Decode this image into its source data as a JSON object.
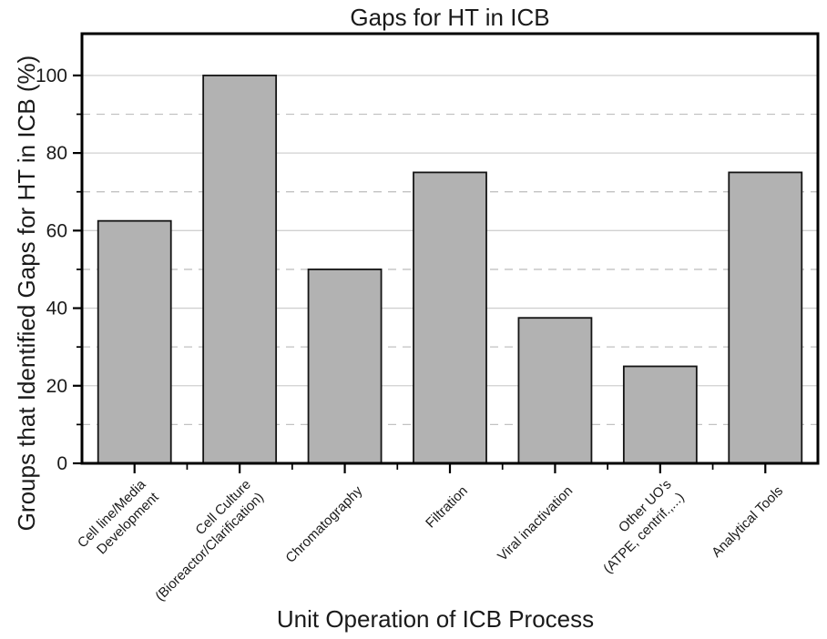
{
  "figure": {
    "background": "#ffffff"
  },
  "chart_data": {
    "type": "bar",
    "title": "Gaps for HT in ICB",
    "xlabel": "Unit Operation of ICB Process",
    "ylabel": "Groups that Identified Gaps for HT in ICB (%)",
    "categories": [
      {
        "label": "Cell line/Media Development",
        "lines": [
          "Cell line/Media",
          "Development"
        ]
      },
      {
        "label": "Cell Culture (Bioreactor/Clarification)",
        "lines": [
          "Cell Culture",
          "(Bioreactor/Clarification)"
        ]
      },
      {
        "label": "Chromatography",
        "lines": [
          "Chromatography"
        ]
      },
      {
        "label": "Filtration",
        "lines": [
          "Filtration"
        ]
      },
      {
        "label": "Viral inactivation",
        "lines": [
          "Viral inactivation"
        ]
      },
      {
        "label": "Other UO's (ATPE, centrif.,...)",
        "lines": [
          "Other UO's",
          "(ATPE, centrif.,...)"
        ]
      },
      {
        "label": "Analytical Tools",
        "lines": [
          "Analytical Tools"
        ]
      }
    ],
    "values": [
      62.5,
      100,
      50,
      75,
      37.5,
      25,
      75
    ],
    "ylim": [
      0,
      111
    ],
    "yticks_major": [
      0,
      20,
      40,
      60,
      80,
      100
    ],
    "yticks_minor": [
      10,
      30,
      50,
      70,
      90
    ],
    "grid": {
      "major_style": "solid",
      "minor_style": "dashed",
      "major_color": "#d0d0d0",
      "minor_color": "#c2c2c2"
    },
    "bar_fill": "#b2b2b2",
    "bar_stroke": "#141414",
    "axis_color": "#000000",
    "legend_position": "none"
  }
}
